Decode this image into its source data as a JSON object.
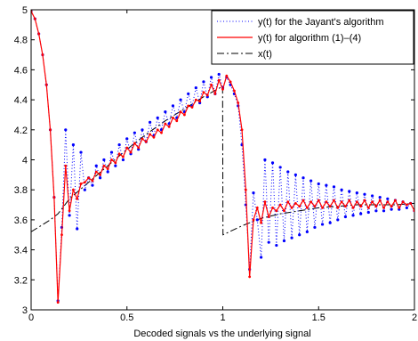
{
  "chart_data": {
    "type": "line",
    "title": "",
    "xlabel": "Decoded signals vs the underlying signal",
    "ylabel": "",
    "xlim": [
      0,
      2
    ],
    "ylim": [
      3,
      5
    ],
    "xticks": [
      "0",
      "0.5",
      "1",
      "1.5",
      "2"
    ],
    "yticks": [
      "3",
      "3.2",
      "3.4",
      "3.6",
      "3.8",
      "4",
      "4.2",
      "4.4",
      "4.6",
      "4.8",
      "5"
    ],
    "grid": false,
    "legend_position": "top-right",
    "series": [
      {
        "name": "y(t) for the Jayant's algorithm",
        "color": "#0000ff",
        "style": "dotted-markers",
        "x": [
          0.0,
          0.02,
          0.04,
          0.06,
          0.08,
          0.1,
          0.12,
          0.14,
          0.16,
          0.18,
          0.2,
          0.22,
          0.24,
          0.26,
          0.28,
          0.3,
          0.32,
          0.34,
          0.36,
          0.38,
          0.4,
          0.42,
          0.44,
          0.46,
          0.48,
          0.5,
          0.52,
          0.54,
          0.56,
          0.58,
          0.6,
          0.62,
          0.64,
          0.66,
          0.68,
          0.7,
          0.72,
          0.74,
          0.76,
          0.78,
          0.8,
          0.82,
          0.84,
          0.86,
          0.88,
          0.9,
          0.92,
          0.94,
          0.96,
          0.98,
          1.0,
          1.02,
          1.04,
          1.06,
          1.08,
          1.1,
          1.12,
          1.14,
          1.16,
          1.18,
          1.2,
          1.22,
          1.24,
          1.26,
          1.28,
          1.3,
          1.32,
          1.34,
          1.36,
          1.38,
          1.4,
          1.42,
          1.44,
          1.46,
          1.48,
          1.5,
          1.52,
          1.54,
          1.56,
          1.58,
          1.6,
          1.62,
          1.64,
          1.66,
          1.68,
          1.7,
          1.72,
          1.74,
          1.76,
          1.78,
          1.8,
          1.82,
          1.84,
          1.86,
          1.88,
          1.9,
          1.92,
          1.94,
          1.96,
          1.98,
          2.0
        ],
        "values": [
          4.99,
          4.94,
          4.84,
          4.7,
          4.5,
          4.2,
          3.75,
          3.06,
          3.55,
          4.2,
          3.63,
          4.1,
          3.54,
          4.05,
          3.8,
          3.88,
          3.83,
          3.96,
          3.88,
          4.0,
          3.92,
          4.05,
          3.96,
          4.1,
          4.0,
          4.14,
          4.04,
          4.18,
          4.07,
          4.2,
          4.12,
          4.25,
          4.16,
          4.28,
          4.2,
          4.32,
          4.24,
          4.36,
          4.28,
          4.4,
          4.32,
          4.44,
          4.36,
          4.48,
          4.38,
          4.52,
          4.42,
          4.55,
          4.44,
          4.57,
          4.48,
          4.55,
          4.5,
          4.44,
          4.36,
          4.1,
          3.7,
          3.27,
          3.78,
          3.6,
          3.35,
          4.0,
          3.45,
          3.98,
          3.43,
          3.95,
          3.46,
          3.92,
          3.48,
          3.9,
          3.5,
          3.88,
          3.52,
          3.86,
          3.55,
          3.84,
          3.57,
          3.83,
          3.58,
          3.82,
          3.6,
          3.8,
          3.62,
          3.79,
          3.63,
          3.78,
          3.64,
          3.77,
          3.65,
          3.76,
          3.66,
          3.75,
          3.66,
          3.74,
          3.67,
          3.73,
          3.67,
          3.72,
          3.68,
          3.71,
          3.66
        ]
      },
      {
        "name": "y(t) for algorithm (1)–(4)",
        "color": "#ff0000",
        "style": "solid-markers",
        "x": [
          0.0,
          0.02,
          0.04,
          0.06,
          0.08,
          0.1,
          0.12,
          0.14,
          0.16,
          0.18,
          0.2,
          0.22,
          0.24,
          0.26,
          0.28,
          0.3,
          0.32,
          0.34,
          0.36,
          0.38,
          0.4,
          0.42,
          0.44,
          0.46,
          0.48,
          0.5,
          0.52,
          0.54,
          0.56,
          0.58,
          0.6,
          0.62,
          0.64,
          0.66,
          0.68,
          0.7,
          0.72,
          0.74,
          0.76,
          0.78,
          0.8,
          0.82,
          0.84,
          0.86,
          0.88,
          0.9,
          0.92,
          0.94,
          0.96,
          0.98,
          1.0,
          1.02,
          1.04,
          1.06,
          1.08,
          1.1,
          1.12,
          1.14,
          1.16,
          1.18,
          1.2,
          1.22,
          1.24,
          1.26,
          1.28,
          1.3,
          1.32,
          1.34,
          1.36,
          1.38,
          1.4,
          1.42,
          1.44,
          1.46,
          1.48,
          1.5,
          1.52,
          1.54,
          1.56,
          1.58,
          1.6,
          1.62,
          1.64,
          1.66,
          1.68,
          1.7,
          1.72,
          1.74,
          1.76,
          1.78,
          1.8,
          1.82,
          1.84,
          1.86,
          1.88,
          1.9,
          1.92,
          1.94,
          1.96,
          1.98,
          2.0
        ],
        "values": [
          4.99,
          4.94,
          4.84,
          4.7,
          4.5,
          4.2,
          3.75,
          3.05,
          3.5,
          3.96,
          3.66,
          3.8,
          3.74,
          3.84,
          3.85,
          3.88,
          3.86,
          3.92,
          3.9,
          3.96,
          3.94,
          4.0,
          3.98,
          4.04,
          4.02,
          4.08,
          4.05,
          4.11,
          4.08,
          4.14,
          4.12,
          4.17,
          4.15,
          4.2,
          4.18,
          4.24,
          4.22,
          4.28,
          4.26,
          4.32,
          4.3,
          4.36,
          4.35,
          4.4,
          4.39,
          4.45,
          4.43,
          4.5,
          4.44,
          4.53,
          4.47,
          4.56,
          4.52,
          4.46,
          4.38,
          4.2,
          3.8,
          3.22,
          3.6,
          3.68,
          3.58,
          3.72,
          3.62,
          3.68,
          3.66,
          3.7,
          3.66,
          3.72,
          3.68,
          3.71,
          3.69,
          3.73,
          3.68,
          3.72,
          3.69,
          3.73,
          3.68,
          3.72,
          3.69,
          3.73,
          3.68,
          3.72,
          3.69,
          3.73,
          3.68,
          3.72,
          3.69,
          3.73,
          3.68,
          3.72,
          3.69,
          3.73,
          3.68,
          3.72,
          3.69,
          3.73,
          3.68,
          3.72,
          3.7,
          3.71,
          3.66
        ]
      },
      {
        "name": "x(t)",
        "color": "#000000",
        "style": "dashdot",
        "x": [
          0.0,
          0.05,
          0.1,
          0.14,
          0.2,
          0.3,
          0.4,
          0.5,
          0.6,
          0.7,
          0.8,
          0.9,
          0.999,
          1.001,
          1.1,
          1.2,
          1.3,
          1.4,
          1.5,
          1.6,
          1.7,
          1.8,
          1.9,
          2.0
        ],
        "values": [
          3.52,
          3.56,
          3.6,
          3.64,
          3.74,
          3.85,
          3.96,
          4.07,
          4.17,
          4.26,
          4.34,
          4.42,
          4.49,
          3.5,
          3.56,
          3.61,
          3.64,
          3.66,
          3.68,
          3.69,
          3.7,
          3.7,
          3.7,
          3.71
        ]
      }
    ]
  }
}
